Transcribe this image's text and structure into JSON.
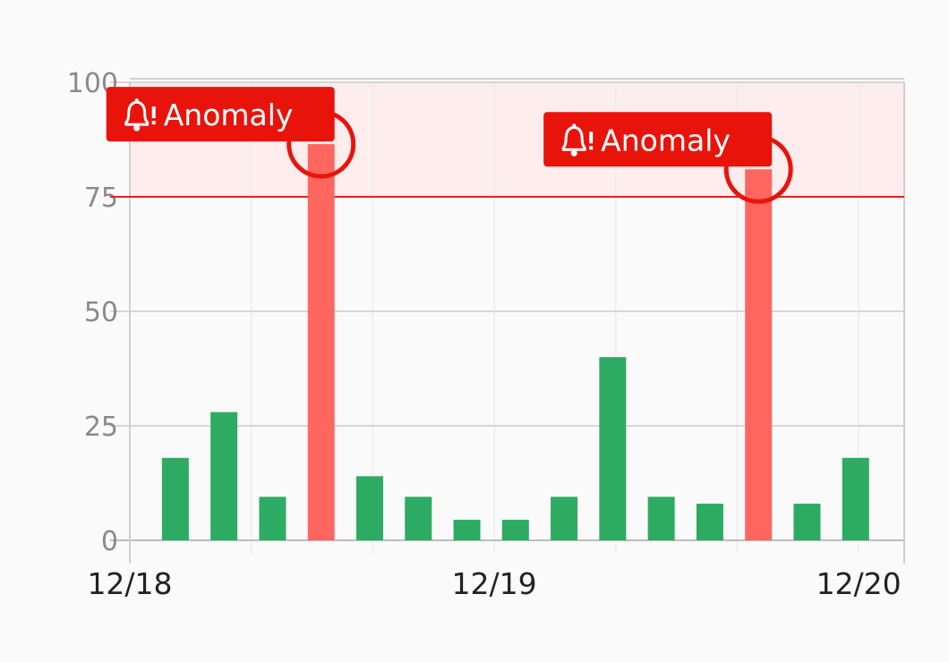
{
  "chart_data": {
    "type": "bar",
    "title": "",
    "xlabel": "",
    "ylabel": "",
    "ylim": [
      0,
      100
    ],
    "xlim": [
      "12/18 00:00",
      "12/20 03:00"
    ],
    "yticks": [
      "0",
      "25",
      "50",
      "75",
      "100"
    ],
    "xticks": [
      {
        "label": "12/18",
        "at": "12/18 00:00"
      },
      {
        "label": "12/19",
        "at": "12/19 00:00"
      },
      {
        "label": "12/20",
        "at": "12/20 00:00"
      }
    ],
    "grid": true,
    "threshold": {
      "value": 75,
      "band": [
        75,
        100
      ],
      "color": "#e02418",
      "band_color": "#fdeded"
    },
    "x": [
      "12/18 03:00",
      "12/18 06:12",
      "12/18 09:24",
      "12/18 12:36",
      "12/18 15:48",
      "12/18 19:00",
      "12/18 22:12",
      "12/19 01:24",
      "12/19 04:36",
      "12/19 07:48",
      "12/19 11:00",
      "12/19 14:12",
      "12/19 17:24",
      "12/19 20:36",
      "12/19 23:48"
    ],
    "values": [
      18,
      28,
      9.5,
      86.5,
      14,
      9.5,
      4.5,
      4.5,
      9.5,
      40,
      9.5,
      8,
      81,
      8,
      18
    ],
    "anomalies": [
      3,
      12
    ],
    "annotation_label": "Anomaly",
    "annotation_icon": "bell-alert-icon",
    "colors": {
      "normal": "#2eab62",
      "anomaly": "#ff6660",
      "annotation": "#e8140c"
    }
  }
}
